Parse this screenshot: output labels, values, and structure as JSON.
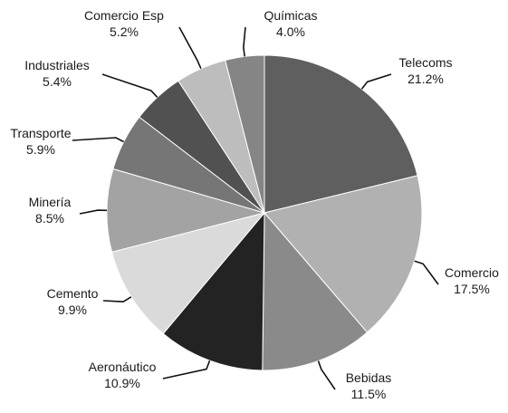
{
  "chart_data": {
    "type": "pie",
    "title": "",
    "categories": [
      "Telecoms",
      "Comercio",
      "Bebidas",
      "Aeronáutico",
      "Cemento",
      "Minería",
      "Transporte",
      "Industriales",
      "Comercio Esp",
      "Químicas"
    ],
    "values": [
      21.2,
      17.5,
      11.5,
      10.9,
      9.9,
      8.5,
      5.9,
      5.4,
      5.2,
      4.0
    ],
    "value_labels": [
      "21.2%",
      "17.5%",
      "11.5%",
      "10.9%",
      "9.9%",
      "8.5%",
      "5.9%",
      "5.4%",
      "5.2%",
      "4.0%"
    ],
    "colors": [
      "#5f5f5f",
      "#b1b1b1",
      "#8a8a8a",
      "#232323",
      "#dadada",
      "#a3a3a3",
      "#767676",
      "#515151",
      "#bdbdbd",
      "#858585"
    ],
    "start_angle_deg": 0,
    "direction": "clockwise",
    "legend": "none",
    "label_style": "outside-with-leader-lines"
  }
}
